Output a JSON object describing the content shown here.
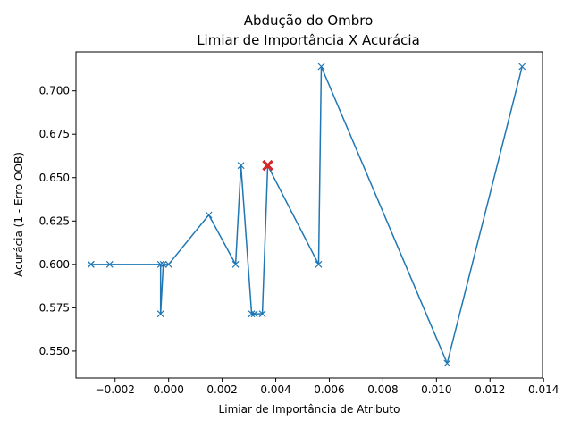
{
  "chart_data": {
    "type": "line",
    "title": "Abdução do Ombro",
    "subtitle": "Limiar de Importância X Acurácia",
    "xlabel": "Limiar de Importância de Atributo",
    "ylabel": "Acurácia (1 - Erro OOB)",
    "xlim": [
      -0.00346,
      0.01396
    ],
    "ylim": [
      0.5345,
      0.7225
    ],
    "xticks": [
      -0.002,
      0.0,
      0.002,
      0.004,
      0.006,
      0.008,
      0.01,
      0.012,
      0.014
    ],
    "xtick_labels": [
      "−0.002",
      "0.000",
      "0.002",
      "0.004",
      "0.006",
      "0.008",
      "0.010",
      "0.012",
      "0.014"
    ],
    "yticks": [
      0.55,
      0.575,
      0.6,
      0.625,
      0.65,
      0.675,
      0.7
    ],
    "ytick_labels": [
      "0.550",
      "0.575",
      "0.600",
      "0.625",
      "0.650",
      "0.675",
      "0.700"
    ],
    "grid": false,
    "series": [
      {
        "color": "#1f77b4",
        "marker": "x",
        "x": [
          -0.0029,
          -0.0029,
          -0.0022,
          -0.0003,
          -0.0003,
          -0.0002,
          0.0,
          0.0015,
          0.0025,
          0.0027,
          0.0031,
          0.0032,
          0.0035,
          0.0037,
          0.0056,
          0.0057,
          0.0104,
          0.0132
        ],
        "y": [
          0.6,
          0.6,
          0.6,
          0.6,
          0.5715,
          0.6,
          0.6,
          0.6285,
          0.6,
          0.657,
          0.5715,
          0.5715,
          0.5715,
          0.657,
          0.6,
          0.714,
          0.543,
          0.714
        ]
      }
    ],
    "highlight": {
      "x": 0.0037,
      "y": 0.657,
      "color": "#d62728",
      "marker": "X"
    }
  }
}
